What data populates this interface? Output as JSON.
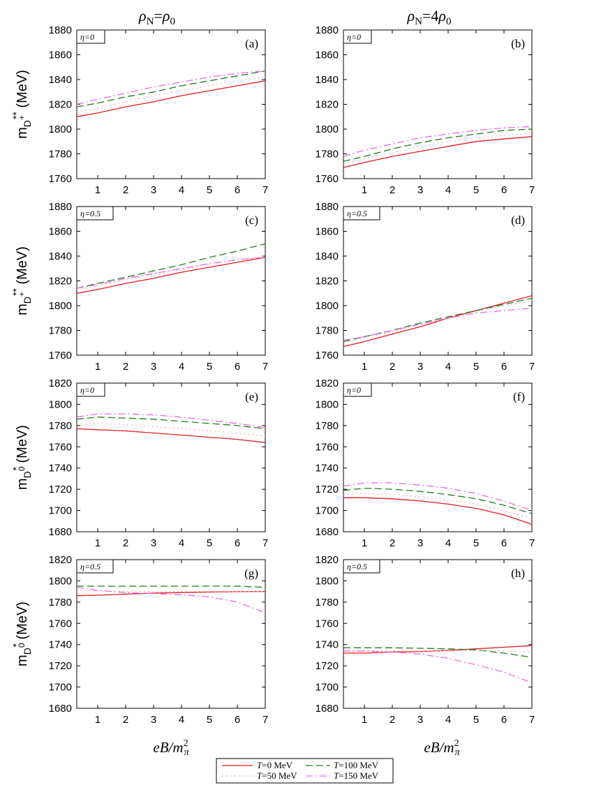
{
  "col_headers": [
    {
      "rho": "ρ",
      "sub": "N",
      "mid": "=",
      "rhs": "ρ",
      "rhs_sub": "0",
      "coef": ""
    },
    {
      "rho": "ρ",
      "sub": "N",
      "mid": "=",
      "rhs": "ρ",
      "rhs_sub": "0",
      "coef": "4"
    }
  ],
  "xlabel": {
    "main": "eB/m",
    "sup": "2",
    "sub": "π"
  },
  "legend": [
    {
      "T": "T",
      "label": "=0 MeV",
      "color": "#e41a1c",
      "dash": ""
    },
    {
      "T": "T",
      "label": "=100 MeV",
      "color": "#1a7f1a",
      "dash": "10,5"
    },
    {
      "T": "T",
      "label": "=50 MeV",
      "color": "#f2b6b6",
      "dash": "2,4"
    },
    {
      "T": "T",
      "label": "=150 MeV",
      "color": "#ee66ee",
      "dash": "10,4,2,4"
    }
  ],
  "chart_data": [
    {
      "type": "line",
      "panel": "(a)",
      "eta": "η=0",
      "ylabel": {
        "base": "m",
        "sub": "D",
        "subsup": "+",
        "sup": "**",
        "unit": "(MeV)"
      },
      "xlim": [
        0.25,
        7
      ],
      "ylim": [
        1760,
        1880
      ],
      "yticks": [
        1760,
        1780,
        1800,
        1820,
        1840,
        1860,
        1880
      ],
      "xticks": [
        1,
        2,
        3,
        4,
        5,
        6,
        7
      ],
      "x": [
        0.25,
        1,
        2,
        3,
        4,
        5,
        6,
        7
      ],
      "series": [
        {
          "T": "T=0 MeV",
          "values": [
            1810,
            1813,
            1818,
            1822,
            1827,
            1831,
            1835,
            1839
          ]
        },
        {
          "T": "T=100 MeV",
          "values": [
            1818,
            1821,
            1826,
            1830,
            1835,
            1839,
            1843,
            1847
          ]
        },
        {
          "T": "T=50 MeV",
          "values": [
            1814,
            1817,
            1822,
            1827,
            1831,
            1835,
            1839,
            1842
          ]
        },
        {
          "T": "T=150 MeV",
          "values": [
            1820,
            1824,
            1829,
            1834,
            1838,
            1842,
            1845,
            1847
          ]
        }
      ]
    },
    {
      "type": "line",
      "panel": "(b)",
      "eta": "η=0",
      "ylabel": null,
      "xlim": [
        0.25,
        7
      ],
      "ylim": [
        1760,
        1880
      ],
      "yticks": [
        1760,
        1780,
        1800,
        1820,
        1840,
        1860,
        1880
      ],
      "xticks": [
        1,
        2,
        3,
        4,
        5,
        6,
        7
      ],
      "x": [
        0.25,
        1,
        2,
        3,
        4,
        5,
        6,
        7
      ],
      "series": [
        {
          "T": "T=0 MeV",
          "values": [
            1769,
            1773,
            1778,
            1782,
            1786,
            1790,
            1792,
            1794
          ]
        },
        {
          "T": "T=100 MeV",
          "values": [
            1774,
            1778,
            1784,
            1789,
            1793,
            1796,
            1799,
            1800
          ]
        },
        {
          "T": "T=50 MeV",
          "values": [
            1772,
            1776,
            1781,
            1786,
            1790,
            1793,
            1795,
            1797
          ]
        },
        {
          "T": "T=150 MeV",
          "values": [
            1778,
            1783,
            1788,
            1793,
            1796,
            1799,
            1801,
            1802
          ]
        }
      ]
    },
    {
      "type": "line",
      "panel": "(c)",
      "eta": "η=0.5",
      "ylabel": {
        "base": "m",
        "sub": "D",
        "subsup": "+",
        "sup": "**",
        "unit": "(MeV)"
      },
      "xlim": [
        0.25,
        7
      ],
      "ylim": [
        1760,
        1880
      ],
      "yticks": [
        1760,
        1780,
        1800,
        1820,
        1840,
        1860,
        1880
      ],
      "xticks": [
        1,
        2,
        3,
        4,
        5,
        6,
        7
      ],
      "x": [
        0.25,
        1,
        2,
        3,
        4,
        5,
        6,
        7
      ],
      "series": [
        {
          "T": "T=0 MeV",
          "values": [
            1810,
            1813,
            1818,
            1822,
            1827,
            1831,
            1835,
            1839
          ]
        },
        {
          "T": "T=100 MeV",
          "values": [
            1814,
            1818,
            1823,
            1828,
            1833,
            1839,
            1844,
            1850
          ]
        },
        {
          "T": "T=50 MeV",
          "values": [
            1813,
            1816,
            1821,
            1825,
            1829,
            1833,
            1837,
            1840
          ]
        },
        {
          "T": "T=150 MeV",
          "values": [
            1814,
            1817,
            1822,
            1826,
            1830,
            1834,
            1837,
            1839
          ]
        }
      ]
    },
    {
      "type": "line",
      "panel": "(d)",
      "eta": "η=0.5",
      "ylabel": null,
      "xlim": [
        0.25,
        7
      ],
      "ylim": [
        1760,
        1880
      ],
      "yticks": [
        1760,
        1780,
        1800,
        1820,
        1840,
        1860,
        1880
      ],
      "xticks": [
        1,
        2,
        3,
        4,
        5,
        6,
        7
      ],
      "x": [
        0.25,
        1,
        2,
        3,
        4,
        5,
        6,
        7
      ],
      "series": [
        {
          "T": "T=0 MeV",
          "values": [
            1767,
            1771,
            1777,
            1783,
            1790,
            1796,
            1802,
            1808
          ]
        },
        {
          "T": "T=100 MeV",
          "values": [
            1771,
            1775,
            1780,
            1786,
            1791,
            1796,
            1801,
            1806
          ]
        },
        {
          "T": "T=50 MeV",
          "values": [
            1770,
            1774,
            1779,
            1785,
            1790,
            1795,
            1800,
            1804
          ]
        },
        {
          "T": "T=150 MeV",
          "values": [
            1772,
            1775,
            1780,
            1785,
            1790,
            1794,
            1796,
            1798
          ]
        }
      ]
    },
    {
      "type": "line",
      "panel": "(e)",
      "eta": "η=0",
      "ylabel": {
        "base": "m",
        "sub": "D",
        "subsup": "0",
        "sup": "*",
        "unit": "(MeV)"
      },
      "xlim": [
        0.25,
        7
      ],
      "ylim": [
        1680,
        1820
      ],
      "yticks": [
        1680,
        1700,
        1720,
        1740,
        1760,
        1780,
        1800,
        1820
      ],
      "xticks": [
        1,
        2,
        3,
        4,
        5,
        6,
        7
      ],
      "x": [
        0.25,
        1,
        2,
        3,
        4,
        5,
        6,
        7
      ],
      "series": [
        {
          "T": "T=0 MeV",
          "values": [
            1777,
            1776,
            1775,
            1773,
            1771,
            1769,
            1767,
            1764
          ]
        },
        {
          "T": "T=100 MeV",
          "values": [
            1786,
            1788,
            1787,
            1786,
            1784,
            1782,
            1780,
            1777
          ]
        },
        {
          "T": "T=50 MeV",
          "values": [
            1781,
            1782,
            1781,
            1779,
            1777,
            1775,
            1773,
            1770
          ]
        },
        {
          "T": "T=150 MeV",
          "values": [
            1788,
            1791,
            1791,
            1790,
            1788,
            1785,
            1782,
            1778
          ]
        }
      ]
    },
    {
      "type": "line",
      "panel": "(f)",
      "eta": "η=0",
      "ylabel": null,
      "xlim": [
        0.25,
        7
      ],
      "ylim": [
        1680,
        1820
      ],
      "yticks": [
        1680,
        1700,
        1720,
        1740,
        1760,
        1780,
        1800,
        1820
      ],
      "xticks": [
        1,
        2,
        3,
        4,
        5,
        6,
        7
      ],
      "x": [
        0.25,
        1,
        2,
        3,
        4,
        5,
        6,
        7
      ],
      "series": [
        {
          "T": "T=0 MeV",
          "values": [
            1712,
            1712,
            1711,
            1709,
            1706,
            1702,
            1696,
            1687
          ]
        },
        {
          "T": "T=100 MeV",
          "values": [
            1719,
            1721,
            1720,
            1718,
            1715,
            1711,
            1705,
            1697
          ]
        },
        {
          "T": "T=50 MeV",
          "values": [
            1715,
            1716,
            1715,
            1713,
            1710,
            1706,
            1700,
            1692
          ]
        },
        {
          "T": "T=150 MeV",
          "values": [
            1723,
            1726,
            1726,
            1724,
            1721,
            1716,
            1709,
            1700
          ]
        }
      ]
    },
    {
      "type": "line",
      "panel": "(g)",
      "eta": "η=0.5",
      "ylabel": {
        "base": "m",
        "sub": "D",
        "subsup": "0",
        "sup": "*",
        "unit": "(MeV)"
      },
      "xlim": [
        0.25,
        7
      ],
      "ylim": [
        1680,
        1820
      ],
      "yticks": [
        1680,
        1700,
        1720,
        1740,
        1760,
        1780,
        1800,
        1820
      ],
      "xticks": [
        1,
        2,
        3,
        4,
        5,
        6,
        7
      ],
      "x": [
        0.25,
        1,
        2,
        3,
        4,
        5,
        6,
        7
      ],
      "series": [
        {
          "T": "T=0 MeV",
          "values": [
            1786,
            1786.5,
            1787.5,
            1788.5,
            1789,
            1789.5,
            1789.8,
            1790
          ]
        },
        {
          "T": "T=100 MeV",
          "values": [
            1795,
            1795,
            1795,
            1795,
            1795,
            1795,
            1795,
            1794
          ]
        },
        {
          "T": "T=50 MeV",
          "values": [
            1791,
            1790.5,
            1790,
            1790,
            1790,
            1790,
            1790,
            1790
          ]
        },
        {
          "T": "T=150 MeV",
          "values": [
            1794,
            1791,
            1789,
            1788,
            1787,
            1785,
            1780,
            1770
          ]
        }
      ]
    },
    {
      "type": "line",
      "panel": "(h)",
      "eta": "η=0.5",
      "ylabel": null,
      "xlim": [
        0.25,
        7
      ],
      "ylim": [
        1680,
        1820
      ],
      "yticks": [
        1680,
        1700,
        1720,
        1740,
        1760,
        1780,
        1800,
        1820
      ],
      "xticks": [
        1,
        2,
        3,
        4,
        5,
        6,
        7
      ],
      "x": [
        0.25,
        1,
        2,
        3,
        4,
        5,
        6,
        7
      ],
      "series": [
        {
          "T": "T=0 MeV",
          "values": [
            1732,
            1732,
            1733,
            1733.5,
            1734.5,
            1736,
            1737.5,
            1739
          ]
        },
        {
          "T": "T=100 MeV",
          "values": [
            1737,
            1737,
            1737,
            1736.5,
            1736,
            1735,
            1732,
            1728
          ]
        },
        {
          "T": "T=50 MeV",
          "values": [
            1734,
            1734,
            1734,
            1734,
            1734,
            1734.5,
            1734,
            1733
          ]
        },
        {
          "T": "T=150 MeV",
          "values": [
            1734,
            1734,
            1733,
            1731,
            1727,
            1721,
            1714,
            1704
          ]
        }
      ]
    }
  ]
}
